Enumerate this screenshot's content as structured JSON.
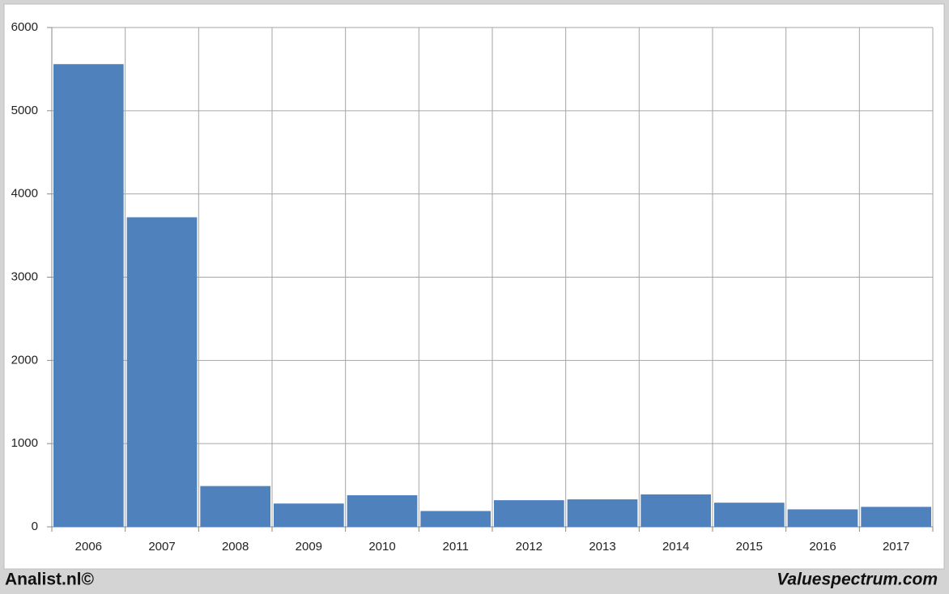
{
  "chart_data": {
    "type": "bar",
    "categories": [
      "2006",
      "2007",
      "2008",
      "2009",
      "2010",
      "2011",
      "2012",
      "2013",
      "2014",
      "2015",
      "2016",
      "2017"
    ],
    "values": [
      5560,
      3720,
      490,
      280,
      380,
      190,
      320,
      330,
      390,
      290,
      210,
      240
    ],
    "color": "#4f81bd",
    "ylim": [
      0,
      6000
    ],
    "yticks": [
      0,
      1000,
      2000,
      3000,
      4000,
      5000,
      6000
    ],
    "grid": true
  },
  "footer": {
    "left": "Analist.nl©",
    "right": "Valuespectrum.com"
  }
}
